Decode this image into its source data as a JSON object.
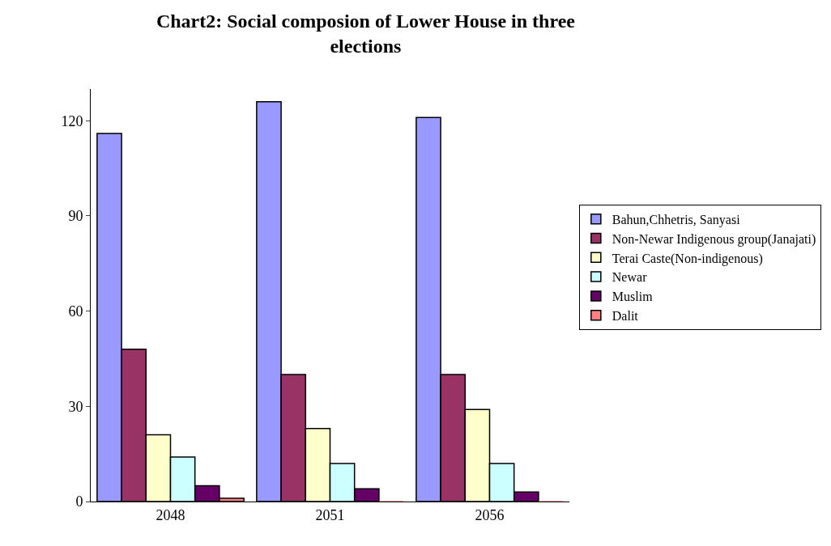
{
  "chart_data": {
    "type": "bar",
    "title": "Chart2: Social composion of Lower House in three elections",
    "categories": [
      "2048",
      "2051",
      "2056"
    ],
    "series": [
      {
        "name": "Bahun,Chhetris, Sanyasi",
        "color": "#9999ff",
        "values": [
          116,
          126,
          121
        ]
      },
      {
        "name": "Non-Newar Indigenous group(Janajati)",
        "color": "#993366",
        "values": [
          48,
          40,
          40
        ]
      },
      {
        "name": "Terai Caste(Non-indigenous)",
        "color": "#ffffcc",
        "values": [
          21,
          23,
          29
        ]
      },
      {
        "name": "Newar",
        "color": "#ccffff",
        "values": [
          14,
          12,
          12
        ]
      },
      {
        "name": "Muslim",
        "color": "#660066",
        "values": [
          5,
          4,
          3
        ]
      },
      {
        "name": "Dalit",
        "color": "#ff8080",
        "values": [
          1,
          0,
          0
        ]
      }
    ],
    "ylim": [
      0,
      130
    ],
    "yticks": [
      0,
      30,
      60,
      90,
      120
    ],
    "grid": false,
    "legend": "right"
  }
}
